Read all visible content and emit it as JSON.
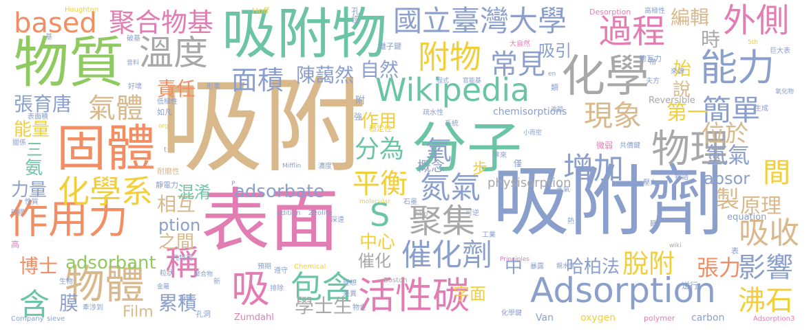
{
  "palette": {
    "tan": "#D9B98C",
    "pink": "#E27DB3",
    "green": "#8FCA61",
    "yellow": "#F2CF39",
    "slate": "#8A9FCB",
    "teal": "#6CC4A6",
    "orange": "#F38D63",
    "gray": "#A8A8A8"
  },
  "words": [
    {
      "id": "w1",
      "text": "吸附",
      "color": "tan"
    },
    {
      "id": "w2",
      "text": "表面",
      "color": "pink"
    },
    {
      "id": "w3",
      "text": "吸附劑",
      "color": "slate"
    },
    {
      "id": "w4",
      "text": "分子",
      "color": "teal"
    },
    {
      "id": "w5",
      "text": "吸附物",
      "color": "teal"
    },
    {
      "id": "w6",
      "text": "物質",
      "color": "green"
    },
    {
      "id": "w7",
      "text": "固體",
      "color": "orange"
    },
    {
      "id": "w8",
      "text": "化學",
      "color": "gray"
    },
    {
      "id": "w9",
      "text": "作用力",
      "color": "orange"
    },
    {
      "id": "w10",
      "text": "Adsorption",
      "color": "slate"
    },
    {
      "id": "w11",
      "text": "Wikipedia",
      "color": "teal"
    },
    {
      "id": "w12",
      "text": "物體",
      "color": "tan"
    },
    {
      "id": "w13",
      "text": "活性碳",
      "color": "pink"
    },
    {
      "id": "w14",
      "text": "物理",
      "color": "gray"
    },
    {
      "id": "w15",
      "text": "國立臺灣大學",
      "color": "slate"
    },
    {
      "id": "w16",
      "text": "能力",
      "color": "slate"
    },
    {
      "id": "w17",
      "text": "化學系",
      "color": "yellow"
    },
    {
      "id": "w18",
      "text": "溫度",
      "color": "gray"
    },
    {
      "id": "w19",
      "text": "過程",
      "color": "pink"
    },
    {
      "id": "w20",
      "text": "外側",
      "color": "pink"
    },
    {
      "id": "w21",
      "text": "吸",
      "color": "pink"
    },
    {
      "id": "w22",
      "text": "附物",
      "color": "yellow"
    },
    {
      "id": "w23",
      "text": "氣體",
      "color": "tan"
    },
    {
      "id": "w24",
      "text": "based",
      "color": "orange"
    },
    {
      "id": "w25",
      "text": "聚合物基",
      "color": "pink"
    },
    {
      "id": "w26",
      "text": "包含",
      "color": "teal"
    },
    {
      "id": "w27",
      "text": "催化劑",
      "color": "slate"
    },
    {
      "id": "w28",
      "text": "面積",
      "color": "slate"
    },
    {
      "id": "w29",
      "text": "常見",
      "color": "slate"
    },
    {
      "id": "w30",
      "text": "現象",
      "color": "tan"
    },
    {
      "id": "w31",
      "text": "簡單",
      "color": "slate"
    },
    {
      "id": "w32",
      "text": "增加",
      "color": "slate"
    },
    {
      "id": "w33",
      "text": "平衡",
      "color": "yellow"
    },
    {
      "id": "w34",
      "text": "分為",
      "color": "teal"
    },
    {
      "id": "w35",
      "text": "氮氣",
      "color": "slate"
    },
    {
      "id": "w36",
      "text": "聚集",
      "color": "gray"
    },
    {
      "id": "w37",
      "text": "脫附",
      "color": "yellow"
    },
    {
      "id": "w38",
      "text": "影響",
      "color": "slate"
    },
    {
      "id": "w39",
      "text": "沸石",
      "color": "yellow"
    },
    {
      "id": "w40",
      "text": "吸收",
      "color": "tan"
    },
    {
      "id": "w41",
      "text": "稱",
      "color": "pink"
    },
    {
      "id": "w42",
      "text": "含",
      "color": "teal"
    },
    {
      "id": "w43",
      "text": "S",
      "color": "teal"
    },
    {
      "id": "w44",
      "text": "氧",
      "color": "slate"
    },
    {
      "id": "w45",
      "text": "adsorbate",
      "color": "slate"
    },
    {
      "id": "w46",
      "text": "adsorbant",
      "color": "green"
    },
    {
      "id": "w47",
      "text": "位於",
      "color": "tan"
    },
    {
      "id": "w48",
      "text": "氫氣",
      "color": "slate"
    },
    {
      "id": "w49",
      "text": "間",
      "color": "yellow"
    },
    {
      "id": "w50",
      "text": "原理",
      "color": "tan"
    },
    {
      "id": "w51",
      "text": "製",
      "color": "tan"
    },
    {
      "id": "w52",
      "text": "張力",
      "color": "orange"
    },
    {
      "id": "w53",
      "text": "第一",
      "color": "yellow"
    },
    {
      "id": "w54",
      "text": "陳藹然",
      "color": "slate"
    },
    {
      "id": "w55",
      "text": "張育唐",
      "color": "slate"
    },
    {
      "id": "w56",
      "text": "責任",
      "color": "orange"
    },
    {
      "id": "w57",
      "text": "能量",
      "color": "yellow"
    },
    {
      "id": "w58",
      "text": "自然",
      "color": "slate"
    },
    {
      "id": "w59",
      "text": "作用",
      "color": "yellow"
    },
    {
      "id": "w60",
      "text": "吸引",
      "color": "slate"
    },
    {
      "id": "w61",
      "text": "編輯",
      "color": "tan"
    },
    {
      "id": "w62",
      "text": "時",
      "color": "gray"
    },
    {
      "id": "w63",
      "text": "說",
      "color": "tan"
    },
    {
      "id": "w64",
      "text": "始",
      "color": "yellow"
    },
    {
      "id": "w65",
      "text": "相互",
      "color": "tan"
    },
    {
      "id": "w66",
      "text": "之間",
      "color": "tan"
    },
    {
      "id": "w67",
      "text": "中心",
      "color": "yellow"
    },
    {
      "id": "w68",
      "text": "混淆",
      "color": "teal"
    },
    {
      "id": "w69",
      "text": "學士生",
      "color": "gray"
    },
    {
      "id": "w70",
      "text": "累積",
      "color": "slate"
    },
    {
      "id": "w71",
      "text": "博士",
      "color": "orange"
    },
    {
      "id": "w72",
      "text": "膜",
      "color": "slate"
    },
    {
      "id": "w73",
      "text": "Film",
      "color": "tan"
    },
    {
      "id": "w74",
      "text": "哈柏法",
      "color": "slate"
    },
    {
      "id": "w75",
      "text": "字面",
      "color": "yellow"
    },
    {
      "id": "w76",
      "text": "催化",
      "color": "gray"
    },
    {
      "id": "w77",
      "text": "中",
      "color": "slate"
    },
    {
      "id": "w78",
      "text": "步",
      "color": "yellow"
    },
    {
      "id": "w79",
      "text": "概念",
      "color": "slate"
    },
    {
      "id": "w80",
      "text": "absor",
      "color": "slate"
    },
    {
      "id": "w81",
      "text": "ption",
      "color": "slate"
    },
    {
      "id": "w82",
      "text": "physisorption",
      "color": "gray"
    },
    {
      "id": "w83",
      "text": "氨",
      "color": "teal"
    },
    {
      "id": "w84",
      "text": "三",
      "color": "teal"
    },
    {
      "id": "w85",
      "text": "力量",
      "color": "slate"
    },
    {
      "id": "w86",
      "text": "chemisorptions",
      "color": "slate"
    },
    {
      "id": "w87",
      "text": "Reversible",
      "color": "gray"
    },
    {
      "id": "w88",
      "text": "equation",
      "color": "slate"
    },
    {
      "id": "w89",
      "text": "oxygen",
      "color": "yellow"
    },
    {
      "id": "w90",
      "text": "carbon",
      "color": "slate"
    },
    {
      "id": "w91",
      "text": "polymer",
      "color": "pink"
    },
    {
      "id": "w92",
      "text": "Adsorption3",
      "color": "pink"
    },
    {
      "id": "w93",
      "text": "Van",
      "color": "slate"
    },
    {
      "id": "w94",
      "text": "Zumdahl",
      "color": "pink"
    },
    {
      "id": "w95",
      "text": "Boston",
      "color": "gray"
    },
    {
      "id": "w96",
      "text": "Chemical",
      "color": "yellow"
    },
    {
      "id": "w97",
      "text": "Zeolite",
      "color": "slate"
    },
    {
      "id": "w98",
      "text": "edition",
      "color": "slate"
    },
    {
      "id": "w99",
      "text": "molecular",
      "color": "yellow"
    },
    {
      "id": "w100",
      "text": "Principles",
      "color": "pink"
    },
    {
      "id": "w101",
      "text": "Company",
      "color": "slate"
    },
    {
      "id": "w102",
      "text": "sieve",
      "color": "slate"
    },
    {
      "id": "w103",
      "text": "Mifflin",
      "color": "slate"
    },
    {
      "id": "w104",
      "text": "Houghton",
      "color": "yellow"
    },
    {
      "id": "w105",
      "text": "Hoff",
      "color": "yellow"
    },
    {
      "id": "w106",
      "text": "Desorption",
      "color": "pink"
    },
    {
      "id": "w107",
      "text": "http",
      "color": "gray"
    },
    {
      "id": "w108",
      "text": "wiki",
      "color": "gray"
    },
    {
      "id": "w109",
      "text": "org",
      "color": "yellow"
    },
    {
      "id": "w110",
      "text": "孔徑",
      "color": "slate"
    },
    {
      "id": "w111",
      "text": "高極性",
      "color": "slate"
    },
    {
      "id": "w112",
      "text": "離子鍵",
      "color": "slate"
    },
    {
      "id": "w113",
      "text": "大自然",
      "color": "pink"
    },
    {
      "id": "w114",
      "text": "德瓦力",
      "color": "slate"
    },
    {
      "id": "w115",
      "text": "巨大表",
      "color": "slate"
    },
    {
      "id": "w116",
      "text": "來源",
      "color": "slate"
    },
    {
      "id": "w117",
      "text": "夫方",
      "color": "slate"
    },
    {
      "id": "w118",
      "text": "程式",
      "color": "slate"
    },
    {
      "id": "w119",
      "text": "官能基",
      "color": "slate"
    },
    {
      "id": "w120",
      "text": "形重",
      "color": "slate"
    },
    {
      "id": "w121",
      "text": "低極性",
      "color": "slate"
    },
    {
      "id": "w122",
      "text": "如凡",
      "color": "slate"
    },
    {
      "id": "w123",
      "text": "疏水性",
      "color": "slate"
    },
    {
      "id": "w124",
      "text": "穩定性",
      "color": "yellow"
    },
    {
      "id": "w125",
      "text": "系統",
      "color": "slate"
    },
    {
      "id": "w126",
      "text": "小而密",
      "color": "slate"
    },
    {
      "id": "w127",
      "text": "微弱",
      "color": "pink"
    },
    {
      "id": "w128",
      "text": "共價鍵",
      "color": "slate"
    },
    {
      "id": "w129",
      "text": "生成",
      "color": "slate"
    },
    {
      "id": "w130",
      "text": "氧化物",
      "color": "slate"
    },
    {
      "id": "w131",
      "text": "改變",
      "color": "slate"
    },
    {
      "id": "w132",
      "text": "表面積",
      "color": "slate"
    },
    {
      "id": "w133",
      "text": "關係",
      "color": "slate"
    },
    {
      "id": "w134",
      "text": "耐磨性",
      "color": "tan"
    },
    {
      "id": "w135",
      "text": "靜電力",
      "color": "slate"
    },
    {
      "id": "w136",
      "text": "濃度",
      "color": "slate"
    },
    {
      "id": "w137",
      "text": "拿來",
      "color": "slate"
    },
    {
      "id": "w138",
      "text": "僅",
      "color": "slate"
    },
    {
      "id": "w139",
      "text": "物語",
      "color": "slate"
    },
    {
      "id": "w140",
      "text": "壓力",
      "color": "slate"
    },
    {
      "id": "w141",
      "text": "蒸氣",
      "color": "slate"
    },
    {
      "id": "w142",
      "text": "石墨",
      "color": "slate"
    },
    {
      "id": "w143",
      "text": "可逆",
      "color": "slate"
    },
    {
      "id": "w144",
      "text": "熱",
      "color": "slate"
    },
    {
      "id": "w145",
      "text": "篩",
      "color": "slate"
    },
    {
      "id": "w146",
      "text": "工業",
      "color": "slate"
    },
    {
      "id": "w147",
      "text": "深遠",
      "color": "slate"
    },
    {
      "id": "w148",
      "text": "性質",
      "color": "slate"
    },
    {
      "id": "w149",
      "text": "矽膠",
      "color": "slate"
    },
    {
      "id": "w150",
      "text": "凡特荷",
      "color": "slate"
    },
    {
      "id": "w151",
      "text": "高",
      "color": "pink"
    },
    {
      "id": "w152",
      "text": "預期",
      "color": "slate"
    },
    {
      "id": "w153",
      "text": "遵守",
      "color": "slate"
    },
    {
      "id": "w154",
      "text": "粒狀",
      "color": "slate"
    },
    {
      "id": "w155",
      "text": "聚合物",
      "color": "slate"
    },
    {
      "id": "w156",
      "text": "新",
      "color": "slate"
    },
    {
      "id": "w157",
      "text": "生物",
      "color": "slate"
    },
    {
      "id": "w158",
      "text": "金屬",
      "color": "slate"
    },
    {
      "id": "w159",
      "text": "排除",
      "color": "slate"
    },
    {
      "id": "w160",
      "text": "材質",
      "color": "slate"
    },
    {
      "id": "w161",
      "text": "牽涉到",
      "color": "slate"
    },
    {
      "id": "w162",
      "text": "孔洞",
      "color": "slate"
    },
    {
      "id": "w163",
      "text": "理想",
      "color": "slate"
    },
    {
      "id": "w164",
      "text": "差異",
      "color": "slate"
    },
    {
      "id": "w165",
      "text": "物金",
      "color": "slate"
    },
    {
      "id": "w166",
      "text": "暴露",
      "color": "slate"
    },
    {
      "id": "w167",
      "text": "親水性",
      "color": "slate"
    },
    {
      "id": "w168",
      "text": "逆行",
      "color": "slate"
    },
    {
      "id": "w169",
      "text": "化學鍵",
      "color": "slate"
    },
    {
      "id": "w170",
      "text": "好壞",
      "color": "slate"
    },
    {
      "id": "w171",
      "text": "破基",
      "color": "slate"
    },
    {
      "id": "w172",
      "text": "音料",
      "color": "slate"
    },
    {
      "id": "w173",
      "text": "基",
      "color": "slate"
    },
    {
      "id": "w174",
      "text": "附",
      "color": "slate"
    },
    {
      "id": "w175",
      "text": "強",
      "color": "slate"
    },
    {
      "id": "w176",
      "text": "類",
      "color": "slate"
    },
    {
      "id": "w177",
      "text": "物",
      "color": "slate"
    },
    {
      "id": "w178",
      "text": "表",
      "color": "slate"
    },
    {
      "id": "w179",
      "text": "5th",
      "color": "yellow"
    },
    {
      "id": "w180",
      "text": "en",
      "color": "slate"
    },
    {
      "id": "w181",
      "text": "t",
      "color": "pink"
    },
    {
      "id": "w182",
      "text": "P",
      "color": "slate"
    }
  ]
}
